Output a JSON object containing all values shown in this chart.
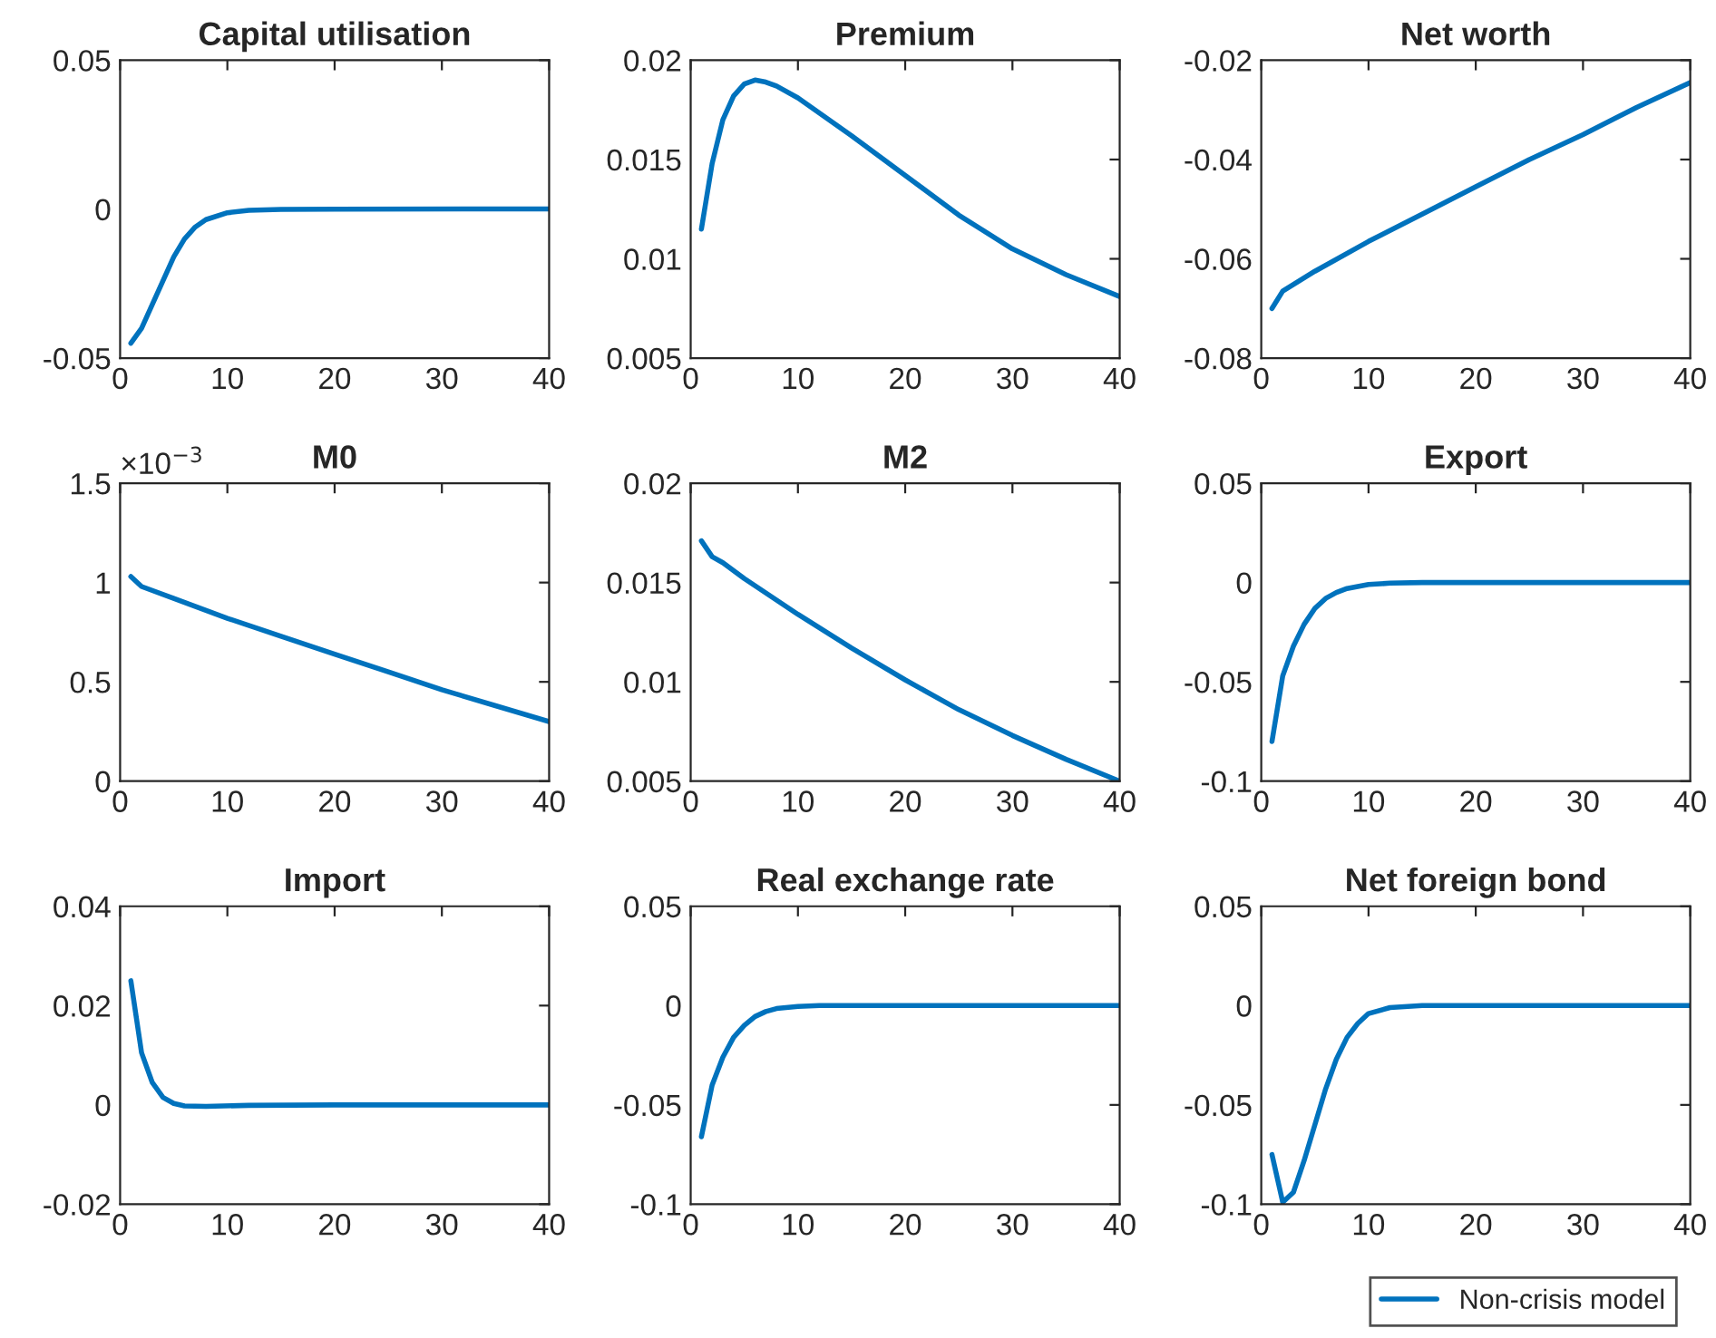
{
  "chart_data": [
    {
      "type": "line",
      "title": "Capital utilisation",
      "xlim": [
        0,
        40
      ],
      "xticks": [
        0,
        10,
        20,
        30,
        40
      ],
      "ylim": [
        -0.05,
        0.05
      ],
      "yticks": [
        -0.05,
        0,
        0.05
      ],
      "grid": false,
      "legend": false,
      "series": [
        {
          "color": "#0072bd",
          "x": [
            1,
            2,
            3,
            4,
            5,
            6,
            7,
            8,
            10,
            12,
            15,
            20,
            40
          ],
          "values": [
            -0.045,
            -0.04,
            -0.032,
            -0.024,
            -0.016,
            -0.01,
            -0.006,
            -0.0035,
            -0.0012,
            -0.0004,
            -0.0001,
            0,
            0.0001
          ]
        }
      ]
    },
    {
      "type": "line",
      "title": "Premium",
      "xlim": [
        0,
        40
      ],
      "xticks": [
        0,
        10,
        20,
        30,
        40
      ],
      "ylim": [
        0.005,
        0.02
      ],
      "yticks": [
        0.005,
        0.01,
        0.015,
        0.02
      ],
      "grid": false,
      "legend": false,
      "series": [
        {
          "color": "#0072bd",
          "x": [
            1,
            2,
            3,
            4,
            5,
            6,
            7,
            8,
            10,
            15,
            20,
            25,
            30,
            35,
            40
          ],
          "values": [
            0.0115,
            0.0148,
            0.017,
            0.0182,
            0.0188,
            0.019,
            0.0189,
            0.0187,
            0.0181,
            0.0162,
            0.0142,
            0.0122,
            0.0105,
            0.0092,
            0.0081
          ]
        }
      ]
    },
    {
      "type": "line",
      "title": "Net worth",
      "xlim": [
        0,
        40
      ],
      "xticks": [
        0,
        10,
        20,
        30,
        40
      ],
      "ylim": [
        -0.08,
        -0.02
      ],
      "yticks": [
        -0.08,
        -0.06,
        -0.04,
        -0.02
      ],
      "grid": false,
      "legend": false,
      "series": [
        {
          "color": "#0072bd",
          "x": [
            1,
            2,
            5,
            10,
            15,
            20,
            25,
            30,
            35,
            40
          ],
          "values": [
            -0.07,
            -0.0665,
            -0.0625,
            -0.0565,
            -0.051,
            -0.0455,
            -0.04,
            -0.035,
            -0.0295,
            -0.0245
          ]
        }
      ]
    },
    {
      "type": "line",
      "title": "M0",
      "annotations": [
        "×10$^{−3}$"
      ],
      "xlim": [
        0,
        40
      ],
      "xticks": [
        0,
        10,
        20,
        30,
        40
      ],
      "ylim": [
        0,
        1.5
      ],
      "yticks": [
        0,
        0.5,
        1,
        1.5
      ],
      "grid": false,
      "legend": false,
      "series": [
        {
          "color": "#0072bd",
          "x": [
            1,
            2,
            5,
            10,
            15,
            20,
            25,
            30,
            35,
            40
          ],
          "values": [
            1.03,
            0.98,
            0.92,
            0.82,
            0.73,
            0.64,
            0.55,
            0.46,
            0.38,
            0.3
          ]
        }
      ]
    },
    {
      "type": "line",
      "title": "M2",
      "xlim": [
        0,
        40
      ],
      "xticks": [
        0,
        10,
        20,
        30,
        40
      ],
      "ylim": [
        0.005,
        0.02
      ],
      "yticks": [
        0.005,
        0.01,
        0.015,
        0.02
      ],
      "grid": false,
      "legend": false,
      "series": [
        {
          "color": "#0072bd",
          "x": [
            1,
            2,
            3,
            5,
            10,
            15,
            20,
            25,
            30,
            35,
            40
          ],
          "values": [
            0.0171,
            0.0163,
            0.016,
            0.0152,
            0.0134,
            0.0117,
            0.0101,
            0.0086,
            0.0073,
            0.0061,
            0.005
          ]
        }
      ]
    },
    {
      "type": "line",
      "title": "Export",
      "xlim": [
        0,
        40
      ],
      "xticks": [
        0,
        10,
        20,
        30,
        40
      ],
      "ylim": [
        -0.1,
        0.05
      ],
      "yticks": [
        -0.1,
        -0.05,
        0,
        0.05
      ],
      "grid": false,
      "legend": false,
      "series": [
        {
          "color": "#0072bd",
          "x": [
            1,
            2,
            3,
            4,
            5,
            6,
            7,
            8,
            10,
            12,
            15,
            40
          ],
          "values": [
            -0.08,
            -0.047,
            -0.032,
            -0.021,
            -0.013,
            -0.008,
            -0.005,
            -0.003,
            -0.001,
            -0.0003,
            0,
            0
          ]
        }
      ]
    },
    {
      "type": "line",
      "title": "Import",
      "xlim": [
        0,
        40
      ],
      "xticks": [
        0,
        10,
        20,
        30,
        40
      ],
      "ylim": [
        -0.02,
        0.04
      ],
      "yticks": [
        -0.02,
        0,
        0.02,
        0.04
      ],
      "grid": false,
      "legend": false,
      "series": [
        {
          "color": "#0072bd",
          "x": [
            1,
            2,
            3,
            4,
            5,
            6,
            8,
            12,
            20,
            40
          ],
          "values": [
            0.025,
            0.0105,
            0.0045,
            0.0015,
            0.0003,
            -0.0002,
            -0.0003,
            -0.0001,
            0,
            0
          ]
        }
      ]
    },
    {
      "type": "line",
      "title": "Real exchange rate",
      "xlim": [
        0,
        40
      ],
      "xticks": [
        0,
        10,
        20,
        30,
        40
      ],
      "ylim": [
        -0.1,
        0.05
      ],
      "yticks": [
        -0.1,
        -0.05,
        0,
        0.05
      ],
      "grid": false,
      "legend": false,
      "series": [
        {
          "color": "#0072bd",
          "x": [
            1,
            2,
            3,
            4,
            5,
            6,
            7,
            8,
            10,
            12,
            40
          ],
          "values": [
            -0.066,
            -0.04,
            -0.026,
            -0.016,
            -0.01,
            -0.0055,
            -0.003,
            -0.0015,
            -0.0004,
            0,
            0
          ]
        }
      ]
    },
    {
      "type": "line",
      "title": "Net foreign bond",
      "xlim": [
        0,
        40
      ],
      "xticks": [
        0,
        10,
        20,
        30,
        40
      ],
      "ylim": [
        -0.1,
        0.05
      ],
      "yticks": [
        -0.1,
        -0.05,
        0,
        0.05
      ],
      "grid": false,
      "legend": "bottom right",
      "series": [
        {
          "name": "Non-crisis model",
          "color": "#0072bd",
          "x": [
            1,
            2,
            3,
            4,
            5,
            6,
            7,
            8,
            9,
            10,
            12,
            15,
            40
          ],
          "values": [
            -0.075,
            -0.099,
            -0.094,
            -0.078,
            -0.06,
            -0.042,
            -0.027,
            -0.016,
            -0.009,
            -0.004,
            -0.001,
            0,
            0
          ]
        }
      ]
    }
  ]
}
